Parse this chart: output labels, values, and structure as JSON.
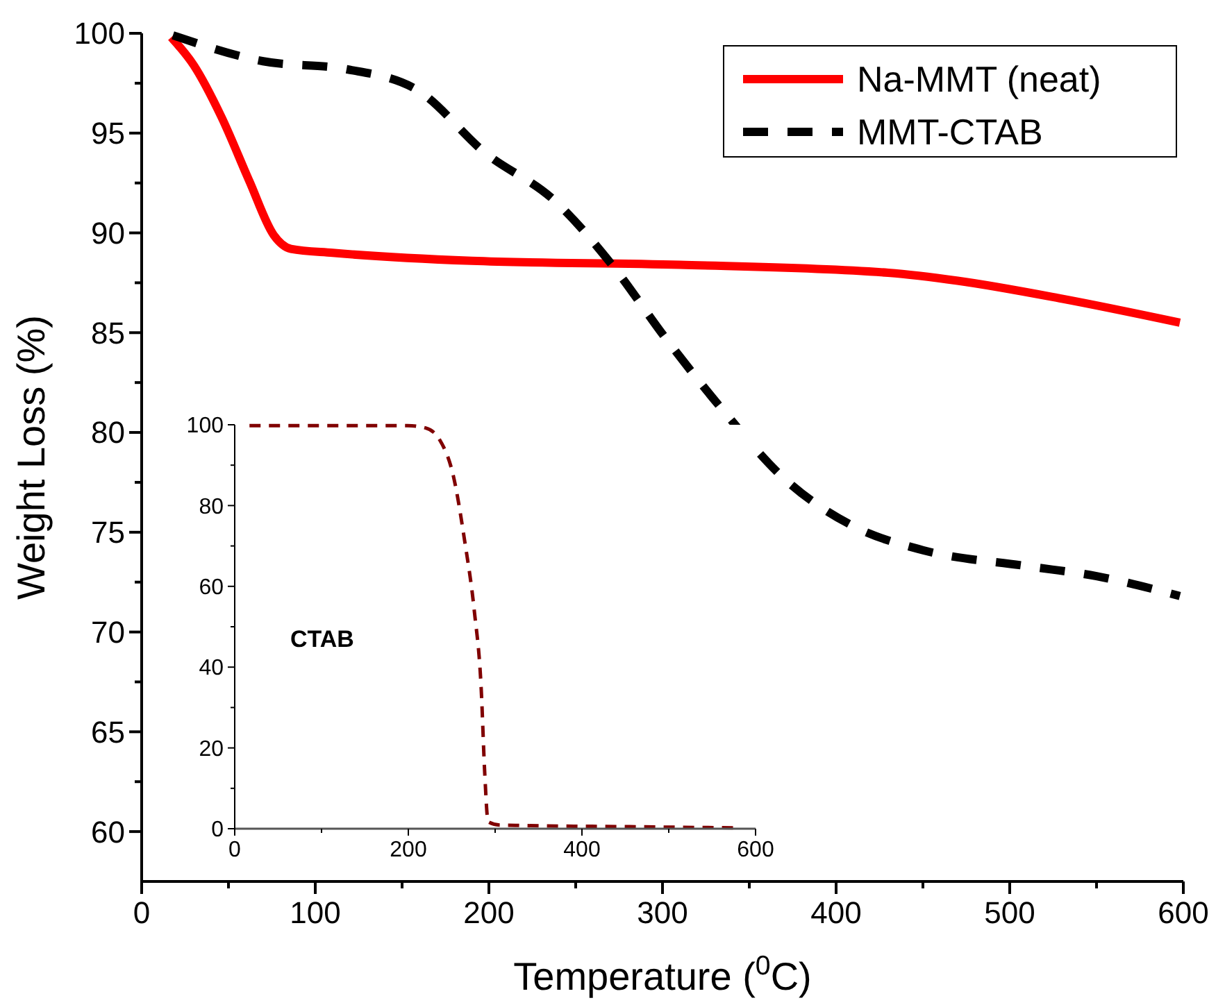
{
  "chart_data": [
    {
      "type": "line",
      "xlabel": "Temperature ($^{0}$C)",
      "ylabel": "Weight Loss (%)",
      "xlim": [
        0,
        600
      ],
      "ylim": [
        57.5,
        100
      ],
      "xticks": [
        0,
        {
          "value": 50,
          "label": null
        },
        100,
        {
          "value": 150,
          "label": null
        },
        200,
        {
          "value": 250,
          "label": null
        },
        300,
        {
          "value": 350,
          "label": null
        },
        400,
        {
          "value": 450,
          "label": null
        },
        500,
        {
          "value": 550,
          "label": null
        },
        600
      ],
      "yticks": [
        60,
        {
          "value": 62.5,
          "label": null
        },
        65,
        {
          "value": 67.5,
          "label": null
        },
        70,
        {
          "value": 72.5,
          "label": null
        },
        75,
        {
          "value": 77.5,
          "label": null
        },
        80,
        {
          "value": 82.5,
          "label": null
        },
        85,
        {
          "value": 87.5,
          "label": null
        },
        90,
        {
          "value": 92.5,
          "label": null
        },
        95,
        {
          "value": 97.5,
          "label": null
        },
        100
      ],
      "legend": "top right",
      "grid": false,
      "series": [
        {
          "name": "Na-MMT (neat)",
          "color": "#ff0000",
          "line_style": "solid",
          "x": [
            17,
            30,
            46,
            62,
            76,
            86,
            110,
            190,
            310,
            430,
            470,
            530,
            598
          ],
          "values": [
            99.8,
            98.4,
            95.8,
            92.6,
            89.9,
            89.2,
            89.0,
            88.6,
            88.4,
            88.0,
            87.6,
            86.7,
            85.5
          ]
        },
        {
          "name": "MMT-CTAB",
          "color": "#000000",
          "line_style": "dashed",
          "x": [
            18,
            70,
            118,
            158,
            198,
            238,
            270,
            302,
            334,
            370,
            410,
            450,
            510,
            550,
            598
          ],
          "values": [
            99.9,
            98.6,
            98.2,
            97.2,
            94.0,
            91.6,
            88.5,
            84.7,
            81.2,
            77.7,
            75.3,
            74.1,
            73.3,
            72.8,
            71.8
          ]
        }
      ]
    },
    {
      "type": "line",
      "xlim": [
        0,
        600
      ],
      "ylim": [
        0,
        100
      ],
      "xticks": [
        0,
        {
          "value": 100,
          "label": null
        },
        200,
        {
          "value": 300,
          "label": null
        },
        400,
        {
          "value": 500,
          "label": null
        },
        600
      ],
      "yticks": [
        0,
        {
          "value": 10,
          "label": null
        },
        20,
        {
          "value": 30,
          "label": null
        },
        40,
        {
          "value": 50,
          "label": null
        },
        60,
        {
          "value": 70,
          "label": null
        },
        80,
        {
          "value": 90,
          "label": null
        },
        100
      ],
      "legend": false,
      "grid": false,
      "annotations": [
        "CTAB"
      ],
      "series": [
        {
          "color": "#800000",
          "line_style": "dashed",
          "x": [
            17,
            199,
            220,
            236,
            252,
            265,
            276,
            284,
            288,
            292,
            305,
            327,
            455,
            578
          ],
          "values": [
            99.8,
            99.8,
            99.2,
            96.3,
            87.2,
            71.1,
            53.9,
            34.4,
            13.8,
            1.7,
            0.9,
            0.8,
            0.5,
            0.2
          ]
        }
      ]
    }
  ]
}
